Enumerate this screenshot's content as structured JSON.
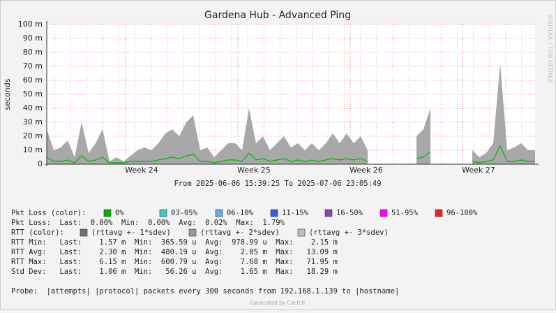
{
  "chart_data": {
    "type": "area",
    "title": "Gardena Hub - Advanced Ping",
    "y_label": "seconds",
    "ylim": [
      0,
      0.1
    ],
    "yticks": [
      0,
      {
        "value": 0.01,
        "label": "10 m"
      },
      {
        "value": 0.02,
        "label": "20 m"
      },
      {
        "value": 0.03,
        "label": "30 m"
      },
      {
        "value": 0.04,
        "label": "40 m"
      },
      {
        "value": 0.05,
        "label": "50 m"
      },
      {
        "value": 0.06,
        "label": "60 m"
      },
      {
        "value": 0.07,
        "label": "70 m"
      },
      {
        "value": 0.08,
        "label": "80 m"
      },
      {
        "value": 0.09,
        "label": "90 m"
      },
      {
        "value": 0.1,
        "label": "100 m"
      }
    ],
    "x_labels": [
      "Week 24",
      "Week 25",
      "Week 26",
      "Week 27"
    ],
    "time_range": "From 2025-06-06 15:39:25 To 2025-07-06 23:05:49",
    "side_text": "RRDTOOL / TOBI OETIKER",
    "grid": true,
    "series": [
      {
        "name": "(rttavg +- 3*sdev)",
        "color": "#a8a8a8",
        "kind": "area",
        "values": [
          0.025,
          0.01,
          0.012,
          0.017,
          0.005,
          0.03,
          0.008,
          0.015,
          0.025,
          0.002,
          0.005,
          0.002,
          0.006,
          0.01,
          0.012,
          0.01,
          0.015,
          0.022,
          0.025,
          0.02,
          0.03,
          0.035,
          0.01,
          0.012,
          0.005,
          0.01,
          0.015,
          0.015,
          0.01,
          0.04,
          0.015,
          0.02,
          0.01,
          0.015,
          0.02,
          0.012,
          0.015,
          0.01,
          0.015,
          0.01,
          0.015,
          0.022,
          0.015,
          0.022,
          0.015,
          0.02,
          0.01,
          null,
          null,
          null,
          null,
          null,
          null,
          0.02,
          0.025,
          0.04,
          null,
          null,
          null,
          null,
          null,
          0.01,
          0.005,
          0.008,
          0.015,
          0.072,
          0.01,
          0.012,
          0.015,
          0.01,
          0.01
        ]
      },
      {
        "name": "0%",
        "color": "#00b400",
        "kind": "line",
        "values": [
          0.005,
          0.002,
          0.002,
          0.003,
          0.001,
          0.006,
          0.002,
          0.003,
          0.005,
          0.001,
          0.001,
          0.001,
          0.002,
          0.002,
          0.002,
          0.002,
          0.003,
          0.004,
          0.005,
          0.004,
          0.006,
          0.007,
          0.002,
          0.002,
          0.001,
          0.002,
          0.003,
          0.003,
          0.002,
          0.008,
          0.003,
          0.004,
          0.002,
          0.003,
          0.004,
          0.002,
          0.003,
          0.002,
          0.003,
          0.002,
          0.003,
          0.004,
          0.003,
          0.004,
          0.003,
          0.004,
          0.002,
          null,
          null,
          null,
          null,
          null,
          null,
          0.004,
          0.005,
          0.009,
          null,
          null,
          null,
          null,
          null,
          0.002,
          0.001,
          0.002,
          0.003,
          0.013,
          0.002,
          0.002,
          0.003,
          0.002,
          0.002
        ]
      }
    ]
  },
  "legend": {
    "pkt_loss_label": "Pkt Loss (color):",
    "pkt_loss_items": [
      {
        "label": "0%",
        "color": "#00b400"
      },
      {
        "label": "03-05%",
        "color": "#40c8c8"
      },
      {
        "label": "06-10%",
        "color": "#60b0e8"
      },
      {
        "label": "11-15%",
        "color": "#3060e0"
      },
      {
        "label": "16-50%",
        "color": "#9040b0"
      },
      {
        "label": "51-95%",
        "color": "#ff00ff"
      },
      {
        "label": "96-100%",
        "color": "#ee2020"
      }
    ],
    "pkt_loss_stats": "Pkt Loss:  Last:  0.00%  Min:  0.00%  Avg:  0.02%  Max:  1.79%",
    "rtt_label": "RTT (color):",
    "rtt_items": [
      {
        "label": "(rttavg +- 1*sdev)",
        "color": "#707070"
      },
      {
        "label": "(rttavg +- 2*sdev)",
        "color": "#999999"
      },
      {
        "label": "(rttavg +- 3*sdev)",
        "color": "#bdbdbd"
      }
    ],
    "stats": [
      "RTT Min:   Last:    1.57 m  Min:  365.59 u  Avg:  978.99 u  Max:    2.15 m",
      "RTT Avg:   Last:    2.30 m  Min:  480.19 u  Avg:    2.05 m  Max:   13.09 m",
      "RTT Max:   Last:    6.15 m  Min:  600.79 u  Avg:    7.68 m  Max:   71.95 m",
      "Std Dev:   Last:    1.06 m  Min:   56.26 u  Avg:    1.65 m  Max:   18.29 m"
    ],
    "probe": "Probe:  |attempts| |protocol| packets every 300 seconds from 192.168.1.139 to |hostname|",
    "footer": "Generated by Cacti®"
  }
}
